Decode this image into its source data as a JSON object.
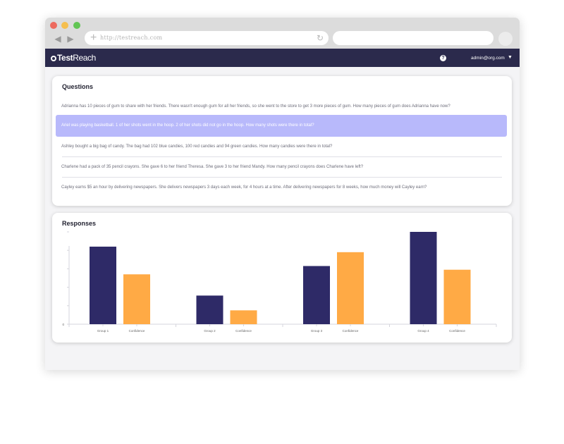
{
  "browser": {
    "url": "http://testreach.com",
    "colors": {
      "close": "#ed6b5f",
      "minimize": "#f5bf4f",
      "maximize": "#61c554"
    },
    "icons": {
      "back": "arrow-left-icon",
      "forward": "arrow-right-icon",
      "add_tab": "plus-icon",
      "reload": "reload-icon"
    }
  },
  "header": {
    "logo": {
      "light": "Test",
      "bold": "Reach"
    },
    "help_icon": "question-circle-icon",
    "user": "admin@org.com",
    "colors": {
      "bar": "#2b2a4c"
    }
  },
  "questions": {
    "title": "Questions",
    "selected_index": 1,
    "items": [
      "Adrianna has 10 pieces of gum to share with her friends. There wasn't enough gum for all her friends, so she went to the store to get 3 more pieces of gum. How many pieces of gum does Adrianna have now?",
      "Ariel was playing basketball. 1 of her shots went in the hoop. 2 of her shots did not go in the hoop. How many shots were there in total?",
      "Ashley bought a big bag of candy. The bag had 102 blue candies, 100 red candies and 94 green candies. How many candies were there in total?",
      "Charlene had a pack of 35 pencil crayons. She gave 6 to her friend Theresa. She gave 3 to her friend Mandy. How many pencil crayons does Charlene have left?",
      "Cayley earns $5 an hour by delivering newspapers. She delivers newspapers 3 days each week, for 4 hours at a time. After delivering newspapers for 8 weeks, how much money will Cayley earn?"
    ],
    "colors": {
      "selected": "#b8b9fb"
    }
  },
  "responses": {
    "title": "Responses"
  },
  "chart_data": {
    "type": "bar",
    "title": "Responses",
    "groups": [
      {
        "bars": [
          {
            "label": "Group 1",
            "value": 4.2
          },
          {
            "label": "Confidence",
            "value": 2.7
          }
        ]
      },
      {
        "bars": [
          {
            "label": "Group 2",
            "value": 1.55
          },
          {
            "label": "Confidence",
            "value": 0.75
          }
        ]
      },
      {
        "bars": [
          {
            "label": "Group 3",
            "value": 3.15
          },
          {
            "label": "Confidence",
            "value": 3.9
          }
        ]
      },
      {
        "bars": [
          {
            "label": "Group 4",
            "value": 5.0
          },
          {
            "label": "Confidence",
            "value": 2.95
          }
        ]
      }
    ],
    "yticks": [
      "0",
      "",
      "",
      "",
      "",
      ""
    ],
    "ylim": [
      0,
      5
    ],
    "grid": false,
    "colors": {
      "group": "#2e2a67",
      "confidence": "#ffaa45"
    }
  }
}
